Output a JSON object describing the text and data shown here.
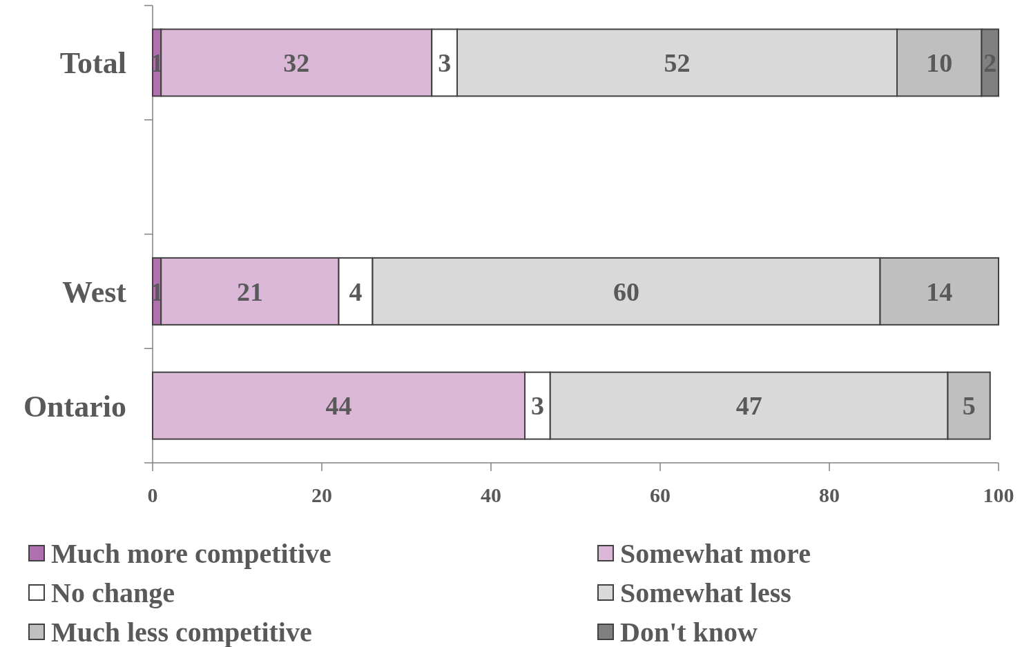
{
  "chart_data": {
    "type": "bar",
    "orientation": "horizontal",
    "stacked": true,
    "data_labels": true,
    "legend": "bottom",
    "grid": false,
    "categories": [
      "Total",
      null,
      "West",
      "Ontario"
    ],
    "xlim": [
      0,
      100
    ],
    "xticks": [
      0,
      20,
      40,
      60,
      80,
      100
    ],
    "series": [
      {
        "name": "Much more competitive",
        "color": "#b070b0",
        "values": [
          1,
          null,
          1,
          null
        ]
      },
      {
        "name": "Somewhat more",
        "color": "#dcb8d8",
        "values": [
          32,
          null,
          21,
          44
        ]
      },
      {
        "name": "No change",
        "color": "#ffffff",
        "values": [
          3,
          null,
          4,
          3
        ]
      },
      {
        "name": "Somewhat less",
        "color": "#d9d9d9",
        "values": [
          52,
          null,
          60,
          47
        ]
      },
      {
        "name": "Much less competitive",
        "color": "#bfbfbf",
        "values": [
          10,
          null,
          14,
          5
        ]
      },
      {
        "name": "Don't know",
        "color": "#808080",
        "values": [
          2,
          null,
          null,
          null
        ]
      }
    ]
  }
}
